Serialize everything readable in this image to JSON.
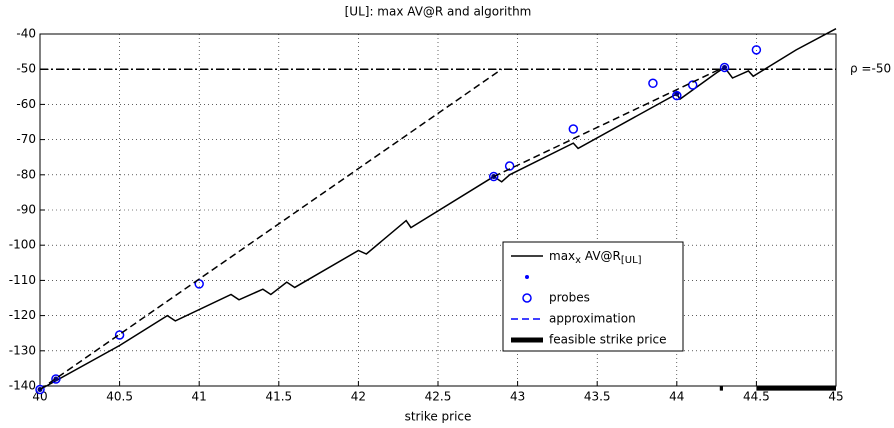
{
  "chart_data": {
    "type": "line",
    "title": "[UL]: max AV@R and algorithm",
    "x_label": "strike price",
    "xlim": [
      40,
      45
    ],
    "xticks": [
      40,
      40.5,
      41,
      41.5,
      42,
      42.5,
      43,
      43.5,
      44,
      44.5,
      45
    ],
    "ylim": [
      -140,
      -40
    ],
    "yticks": [
      -140,
      -130,
      -120,
      -110,
      -100,
      -90,
      -80,
      -70,
      -60,
      -50,
      -40
    ],
    "grid": true,
    "legend": "lower-right",
    "annotations": [
      {
        "text": "ρ =-50",
        "y": -50
      }
    ],
    "series": [
      {
        "name": [
          {
            "text": "max"
          },
          {
            "text": "x",
            "sub": true
          },
          {
            "text": " AV@R"
          },
          {
            "text": "[UL]",
            "sub": true
          }
        ],
        "color": "#000000",
        "linestyle": "solid",
        "linewidth": 1.5,
        "x": [
          40,
          40.5,
          40.8,
          40.85,
          41.2,
          41.25,
          41.4,
          41.45,
          41.55,
          41.6,
          42.0,
          42.05,
          42.3,
          42.33,
          42.85,
          42.9,
          42.95,
          43.35,
          43.38,
          44.0,
          44.02,
          44.25,
          44.3,
          44.35,
          44.45,
          44.48,
          44.75,
          45
        ],
        "values": [
          -141,
          -128.5,
          -120,
          -121.5,
          -114,
          -115.5,
          -112.5,
          -114,
          -110.5,
          -112,
          -101.5,
          -102.5,
          -93,
          -95,
          -80.5,
          -82,
          -80,
          -71,
          -72.5,
          -57,
          -58.5,
          -51,
          -49.5,
          -52.5,
          -50.5,
          -52,
          -44.5,
          -38.5
        ]
      },
      {
        "color": "#000080",
        "marker": "dot",
        "x": [
          40,
          40.1,
          42.85,
          44,
          44.3
        ],
        "values": [
          -141,
          -138,
          -80.5,
          -57,
          -49.5
        ]
      },
      {
        "name": "probes",
        "color": "#0000ff",
        "marker": "circle",
        "x": [
          40,
          40.1,
          40.5,
          41,
          42.85,
          42.95,
          43.35,
          43.85,
          44,
          44.1,
          44.3,
          44.5
        ],
        "values": [
          -141,
          -138,
          -125.5,
          -111,
          -80.5,
          -77.5,
          -67,
          -54,
          -57.5,
          -54.5,
          -49.5,
          -44.5
        ]
      },
      {
        "name": "approximation",
        "color": "#000000",
        "legend_color": "#0000ff",
        "linestyle": "dashed",
        "linewidth": 1.5,
        "x": [
          40,
          42.9,
          null,
          42.85,
          44.27
        ],
        "values": [
          -141,
          -50,
          null,
          -80.5,
          -50
        ]
      },
      {
        "name": "feasible strike price",
        "color": "#000000",
        "linestyle": "solid",
        "linewidth": 5,
        "x": [
          44.27,
          44.29,
          null,
          44.5,
          45
        ],
        "values": [
          -140.6,
          -140.6,
          null,
          -140.6,
          -140.6
        ]
      }
    ]
  }
}
